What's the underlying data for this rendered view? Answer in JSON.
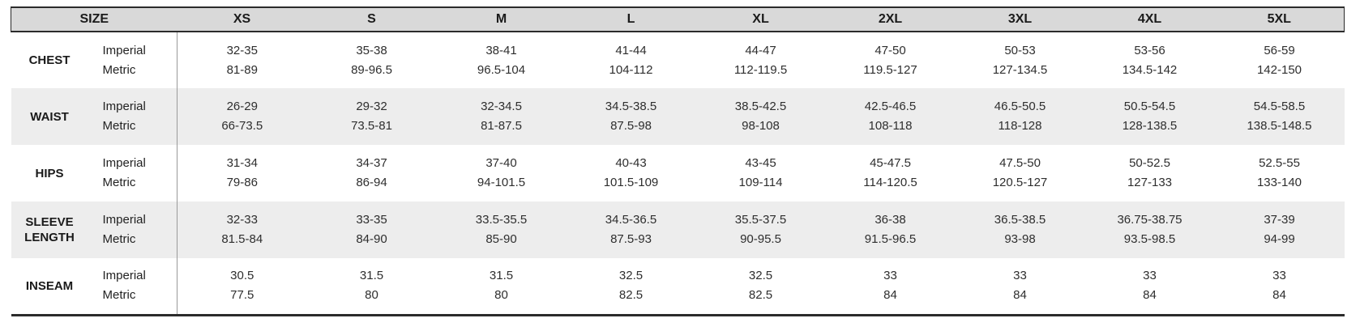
{
  "table": {
    "title": "size-chart",
    "header": {
      "size_label": "SIZE",
      "columns": [
        "XS",
        "S",
        "M",
        "L",
        "XL",
        "2XL",
        "3XL",
        "4XL",
        "5XL"
      ]
    },
    "unit_labels": {
      "imperial": "Imperial",
      "metric": "Metric"
    },
    "rows": [
      {
        "label": "CHEST",
        "shaded": false,
        "imperial": [
          "32-35",
          "35-38",
          "38-41",
          "41-44",
          "44-47",
          "47-50",
          "50-53",
          "53-56",
          "56-59"
        ],
        "metric": [
          "81-89",
          "89-96.5",
          "96.5-104",
          "104-112",
          "112-119.5",
          "119.5-127",
          "127-134.5",
          "134.5-142",
          "142-150"
        ]
      },
      {
        "label": "WAIST",
        "shaded": true,
        "imperial": [
          "26-29",
          "29-32",
          "32-34.5",
          "34.5-38.5",
          "38.5-42.5",
          "42.5-46.5",
          "46.5-50.5",
          "50.5-54.5",
          "54.5-58.5"
        ],
        "metric": [
          "66-73.5",
          "73.5-81",
          "81-87.5",
          "87.5-98",
          "98-108",
          "108-118",
          "118-128",
          "128-138.5",
          "138.5-148.5"
        ]
      },
      {
        "label": "HIPS",
        "shaded": false,
        "imperial": [
          "31-34",
          "34-37",
          "37-40",
          "40-43",
          "43-45",
          "45-47.5",
          "47.5-50",
          "50-52.5",
          "52.5-55"
        ],
        "metric": [
          "79-86",
          "86-94",
          "94-101.5",
          "101.5-109",
          "109-114",
          "114-120.5",
          "120.5-127",
          "127-133",
          "133-140"
        ]
      },
      {
        "label": "SLEEVE LENGTH",
        "shaded": true,
        "imperial": [
          "32-33",
          "33-35",
          "33.5-35.5",
          "34.5-36.5",
          "35.5-37.5",
          "36-38",
          "36.5-38.5",
          "36.75-38.75",
          "37-39"
        ],
        "metric": [
          "81.5-84",
          "84-90",
          "85-90",
          "87.5-93",
          "90-95.5",
          "91.5-96.5",
          "93-98",
          "93.5-98.5",
          "94-99"
        ]
      },
      {
        "label": "INSEAM",
        "shaded": false,
        "imperial": [
          "30.5",
          "31.5",
          "31.5",
          "32.5",
          "32.5",
          "33",
          "33",
          "33",
          "33"
        ],
        "metric": [
          "77.5",
          "80",
          "80",
          "82.5",
          "82.5",
          "84",
          "84",
          "84",
          "84"
        ]
      }
    ]
  },
  "colors": {
    "header_bg": "#d9d9d9",
    "shaded_row_bg": "#ededed",
    "border_dark": "#2b2b2b",
    "divider_gray": "#9a9a9a",
    "text": "#222222"
  }
}
